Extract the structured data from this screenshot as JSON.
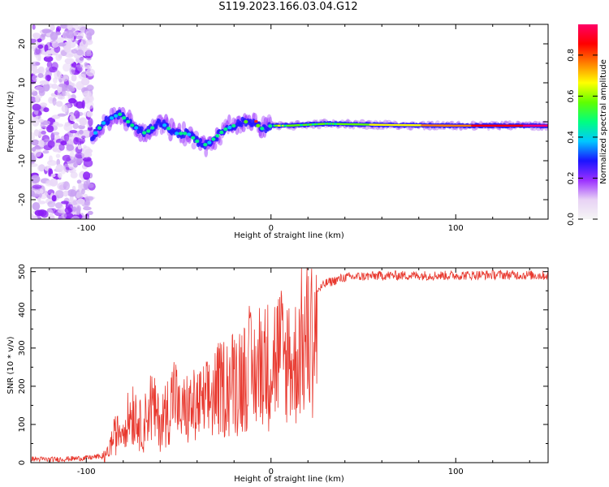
{
  "title": "S119.2023.166.03.04.G12",
  "colors": {
    "snr_line": "#e8382e",
    "axis": "#000000",
    "colormap": [
      "#f5f5f5",
      "#e8d2f5",
      "#9b30ff",
      "#1a14ff",
      "#00c8ff",
      "#00ff80",
      "#60ff00",
      "#ffff00",
      "#ff8000",
      "#ff0000",
      "#ff0066"
    ]
  },
  "chart_data": [
    {
      "type": "heatmap",
      "title": "S119.2023.166.03.04.G12",
      "xlabel": "Height of straight line (km)",
      "ylabel": "Frequency (Hz)",
      "xlim": [
        -130,
        150
      ],
      "ylim": [
        -25,
        25
      ],
      "xticks": [
        -100,
        0,
        100
      ],
      "yticks": [
        -20,
        -10,
        0,
        10,
        20
      ],
      "colorbar": {
        "label": "Normalized spectral amplitude",
        "range": [
          0,
          0.95
        ],
        "ticks": [
          0.0,
          0.2,
          0.4,
          0.6,
          0.8
        ]
      },
      "ridge": {
        "description_points_x": [
          -97,
          -90,
          -82,
          -75,
          -68,
          -60,
          -52,
          -45,
          -40,
          -35,
          -30,
          -25,
          -20,
          -15,
          -10,
          -7,
          -4,
          0,
          10,
          30,
          60,
          100,
          150
        ],
        "description_points_y": [
          -4,
          0,
          2,
          -1,
          -3,
          0,
          -3,
          -3,
          -5,
          -6,
          -4,
          -2,
          -1,
          0,
          0,
          -1,
          -2,
          -1,
          -1,
          -0.5,
          -0.8,
          -1,
          -1
        ]
      },
      "noise_region_x": [
        -130,
        -97
      ]
    },
    {
      "type": "line",
      "xlabel": "Height of straight line (km)",
      "ylabel": "SNR (10 * v/v)",
      "xlim": [
        -130,
        150
      ],
      "ylim": [
        0,
        510
      ],
      "xticks": [
        -100,
        0,
        100
      ],
      "yticks": [
        0,
        100,
        200,
        300,
        400,
        500
      ],
      "series": [
        {
          "x": [
            -130,
            -120,
            -110,
            -100,
            -95,
            -90,
            -88,
            -85,
            -80,
            -75,
            -72,
            -70,
            -65,
            -60,
            -55,
            -52,
            -50,
            -45,
            -40,
            -35,
            -30,
            -25,
            -20,
            -15,
            -12,
            -10,
            -7,
            -5,
            -3,
            0,
            5,
            8,
            10,
            12,
            15,
            18,
            20,
            25,
            30,
            40,
            60,
            80,
            100,
            120,
            150
          ],
          "values": [
            10,
            8,
            10,
            12,
            15,
            20,
            40,
            90,
            120,
            180,
            150,
            110,
            200,
            130,
            190,
            250,
            160,
            180,
            190,
            200,
            240,
            260,
            280,
            300,
            330,
            280,
            320,
            360,
            330,
            340,
            370,
            330,
            380,
            300,
            390,
            410,
            420,
            450,
            470,
            485,
            490,
            490,
            490,
            492,
            490
          ]
        }
      ]
    }
  ]
}
